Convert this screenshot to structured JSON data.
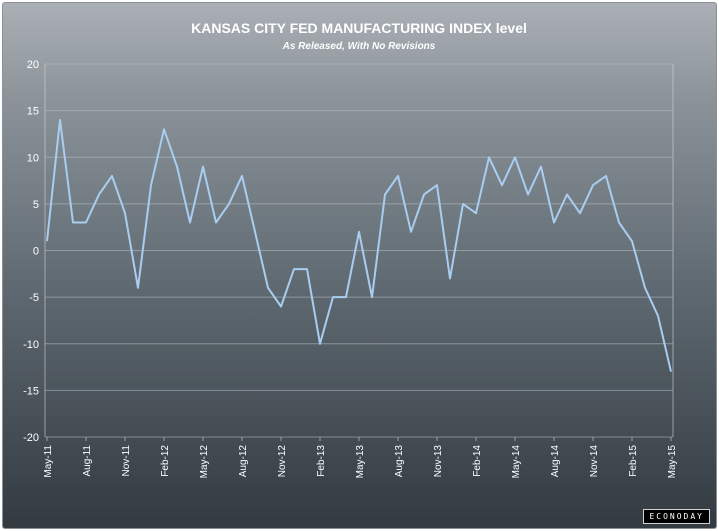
{
  "chart_data": {
    "type": "line",
    "title": "KANSAS CITY FED MANUFACTURING INDEX level",
    "subtitle": "As Released, With No Revisions",
    "xlabel": "",
    "ylabel": "",
    "ylim": [
      -20,
      20
    ],
    "yticks": [
      20,
      15,
      10,
      5,
      0,
      -5,
      -10,
      -15,
      -20
    ],
    "series": [
      {
        "name": "Kansas City Fed Manufacturing Index",
        "color": "#a9cdf0",
        "values": [
          1,
          14,
          3,
          3,
          6,
          8,
          4,
          -4,
          7,
          13,
          9,
          3,
          9,
          3,
          5,
          8,
          2,
          -4,
          -6,
          -2,
          -2,
          -10,
          -5,
          -5,
          2,
          -5,
          6,
          8,
          2,
          6,
          7,
          -3,
          5,
          4,
          10,
          7,
          10,
          6,
          9,
          3,
          6,
          4,
          7,
          8,
          3,
          1,
          -4,
          -7,
          -13
        ]
      }
    ],
    "x_tick_labels": [
      {
        "index": 0,
        "label": "May-11"
      },
      {
        "index": 3,
        "label": "Aug-11"
      },
      {
        "index": 6,
        "label": "Nov-11"
      },
      {
        "index": 9,
        "label": "Feb-12"
      },
      {
        "index": 12,
        "label": "May-12"
      },
      {
        "index": 15,
        "label": "Aug-12"
      },
      {
        "index": 18,
        "label": "Nov-12"
      },
      {
        "index": 21,
        "label": "Feb-13"
      },
      {
        "index": 24,
        "label": "May-13"
      },
      {
        "index": 27,
        "label": "Aug-13"
      },
      {
        "index": 30,
        "label": "Nov-13"
      },
      {
        "index": 33,
        "label": "Feb-14"
      },
      {
        "index": 36,
        "label": "May-14"
      },
      {
        "index": 39,
        "label": "Aug-14"
      },
      {
        "index": 42,
        "label": "Nov-14"
      },
      {
        "index": 45,
        "label": "Feb-15"
      },
      {
        "index": 48,
        "label": "May-15"
      }
    ],
    "grid": true,
    "legend": "none"
  },
  "brand": "ECONODAY"
}
